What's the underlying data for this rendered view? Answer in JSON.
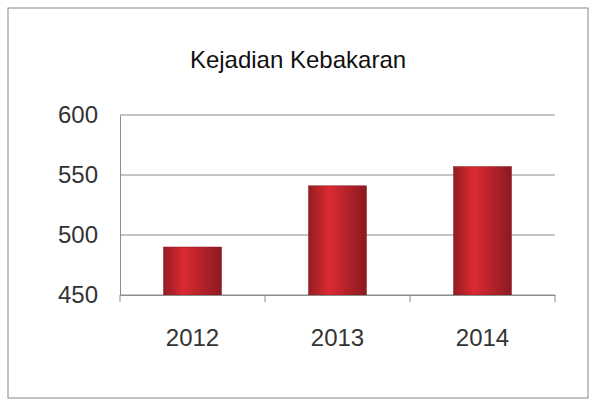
{
  "chart_data": {
    "type": "bar",
    "title": "Kejadian Kebakaran",
    "categories": [
      "2012",
      "2013",
      "2014"
    ],
    "values": [
      490,
      541,
      557
    ],
    "color": "#b8232a",
    "ylim": [
      450,
      600
    ],
    "yticks": [
      450,
      500,
      550,
      600
    ],
    "grid": true
  }
}
